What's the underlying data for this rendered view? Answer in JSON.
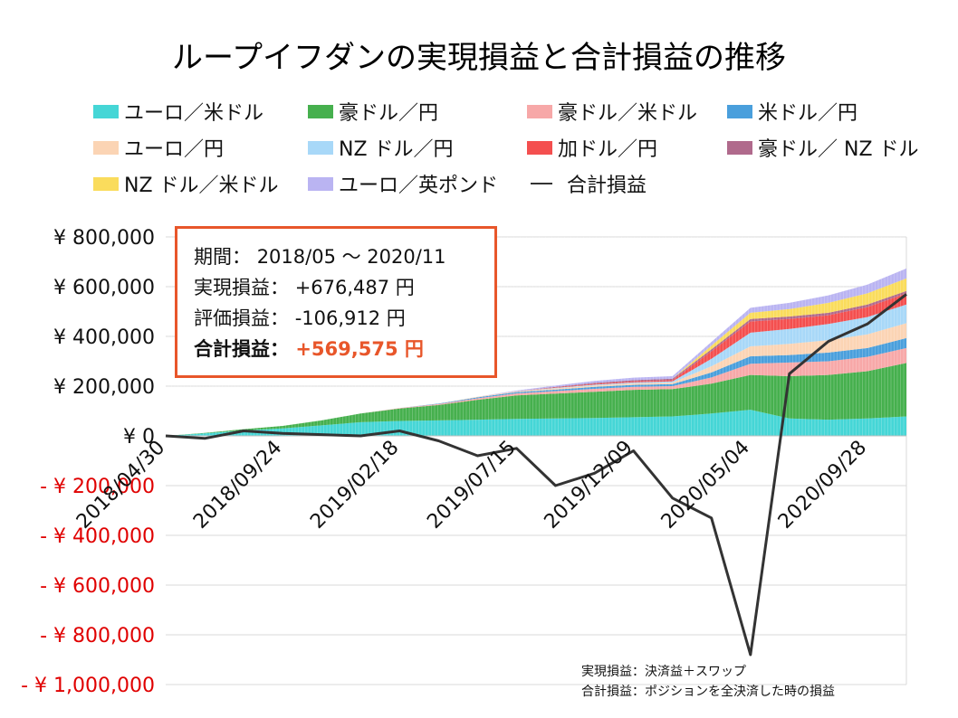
{
  "title": "ループイフダンの実現損益と合計損益の推移",
  "legend": [
    {
      "label": "ユーロ／米ドル",
      "color": "#45d6d6"
    },
    {
      "label": "豪ドル／円",
      "color": "#46b04e"
    },
    {
      "label": "豪ドル／米ドル",
      "color": "#f7a8a8"
    },
    {
      "label": "米ドル／円",
      "color": "#4a9fdc"
    },
    {
      "label": "ユーロ／円",
      "color": "#fbd4b4"
    },
    {
      "label": "NZ ドル／円",
      "color": "#a8d8f8"
    },
    {
      "label": "加ドル／円",
      "color": "#f44f4f"
    },
    {
      "label": "豪ドル／ NZ ドル",
      "color": "#b06a8c"
    },
    {
      "label": "NZ ドル／米ドル",
      "color": "#fadc5c"
    },
    {
      "label": "ユーロ／英ポンド",
      "color": "#bab4f2"
    },
    {
      "label": "合計損益",
      "color": "#333333",
      "kind": "line"
    }
  ],
  "info": {
    "period_label": "期間：",
    "period_value": "2018/05 ～ 2020/11",
    "realized_label": "実現損益：",
    "realized_value": "+676,487 円",
    "unrealized_label": "評価損益：",
    "unrealized_value": "-106,912 円",
    "total_label": "合計損益：",
    "total_value": "+569,575 円"
  },
  "notes": [
    "実現損益：決済益＋スワップ",
    "合計損益：ポジションを全決済した時の損益"
  ],
  "chart_data": {
    "type": "area",
    "stacked": true,
    "ylim": [
      -1000000,
      800000
    ],
    "yticks": [
      {
        "value": 800000,
        "label": "¥ 800,000"
      },
      {
        "value": 600000,
        "label": "¥ 600,000"
      },
      {
        "value": 400000,
        "label": "¥ 400,000"
      },
      {
        "value": 200000,
        "label": "¥ 200,000"
      },
      {
        "value": 0,
        "label": "¥ 0"
      },
      {
        "value": -200000,
        "label": "- ¥ 200,000"
      },
      {
        "value": -400000,
        "label": "- ¥ 400,000"
      },
      {
        "value": -600000,
        "label": "- ¥ 600,000"
      },
      {
        "value": -800000,
        "label": "- ¥ 800,000"
      },
      {
        "value": -1000000,
        "label": "- ¥ 1,000,000"
      }
    ],
    "negative_tick_color": "#e00000",
    "grid": "horizontal",
    "legend_position": "top",
    "x": [
      "2018/04/30",
      "2018/06/24",
      "2018/08/19",
      "2018/09/24",
      "2018/11/18",
      "2019/01/13",
      "2019/02/18",
      "2019/04/14",
      "2019/06/09",
      "2019/07/15",
      "2019/09/08",
      "2019/11/03",
      "2019/12/09",
      "2020/02/02",
      "2020/03/29",
      "2020/05/04",
      "2020/06/28",
      "2020/08/23",
      "2020/09/28",
      "2020/11/23"
    ],
    "xticks_labeled": [
      "2018/04/30",
      "2018/09/24",
      "2019/02/18",
      "2019/07/15",
      "2019/12/09",
      "2020/05/04",
      "2020/09/28"
    ],
    "series": [
      {
        "name": "ユーロ／米ドル",
        "color": "#45d6d6",
        "values": [
          0,
          10000,
          22000,
          30000,
          42000,
          55000,
          60000,
          62000,
          65000,
          68000,
          70000,
          72000,
          75000,
          78000,
          90000,
          105000,
          70000,
          65000,
          70000,
          78000
        ]
      },
      {
        "name": "豪ドル／円",
        "color": "#46b04e",
        "values": [
          0,
          2000,
          5000,
          10000,
          20000,
          35000,
          50000,
          62000,
          80000,
          95000,
          100000,
          105000,
          110000,
          110000,
          120000,
          140000,
          170000,
          180000,
          190000,
          215000
        ]
      },
      {
        "name": "豪ドル／米ドル",
        "color": "#f7a8a8",
        "values": [
          0,
          0,
          0,
          0,
          0,
          0,
          2000,
          4000,
          6000,
          8000,
          10000,
          12000,
          12000,
          12000,
          25000,
          45000,
          55000,
          55000,
          58000,
          60000
        ]
      },
      {
        "name": "米ドル／円",
        "color": "#4a9fdc",
        "values": [
          0,
          0,
          0,
          0,
          0,
          0,
          0,
          2000,
          4000,
          5000,
          6000,
          8000,
          8000,
          8000,
          20000,
          30000,
          30000,
          35000,
          35000,
          40000
        ]
      },
      {
        "name": "ユーロ／円",
        "color": "#fbd4b4",
        "values": [
          0,
          0,
          0,
          0,
          0,
          0,
          0,
          0,
          2000,
          3000,
          5000,
          6000,
          6000,
          6000,
          25000,
          40000,
          45000,
          50000,
          55000,
          60000
        ]
      },
      {
        "name": "NZ ドル／円",
        "color": "#a8d8f8",
        "values": [
          0,
          0,
          0,
          0,
          0,
          0,
          0,
          0,
          0,
          0,
          2000,
          3000,
          4000,
          5000,
          30000,
          55000,
          60000,
          65000,
          70000,
          75000
        ]
      },
      {
        "name": "加ドル／円",
        "color": "#f44f4f",
        "values": [
          0,
          0,
          0,
          0,
          0,
          0,
          0,
          0,
          0,
          0,
          2000,
          3000,
          4000,
          5000,
          30000,
          45000,
          40000,
          35000,
          40000,
          45000
        ]
      },
      {
        "name": "豪ドル／ NZ ドル",
        "color": "#b06a8c",
        "values": [
          0,
          0,
          0,
          0,
          0,
          0,
          0,
          0,
          0,
          0,
          2000,
          4000,
          5000,
          6000,
          8000,
          10000,
          10000,
          10000,
          10000,
          10000
        ]
      },
      {
        "name": "NZ ドル／米ドル",
        "color": "#fadc5c",
        "values": [
          0,
          0,
          0,
          0,
          0,
          0,
          0,
          0,
          0,
          0,
          0,
          0,
          0,
          0,
          15000,
          25000,
          30000,
          40000,
          45000,
          50000
        ]
      },
      {
        "name": "ユーロ／英ポンド",
        "color": "#bab4f2",
        "values": [
          0,
          0,
          0,
          0,
          0,
          0,
          0,
          0,
          0,
          3000,
          5000,
          8000,
          10000,
          10000,
          15000,
          20000,
          25000,
          30000,
          35000,
          40000
        ]
      }
    ],
    "line": {
      "name": "合計損益",
      "color": "#333333",
      "values": [
        0,
        -10000,
        20000,
        10000,
        5000,
        0,
        20000,
        -20000,
        -80000,
        -50000,
        -200000,
        -150000,
        -60000,
        -250000,
        -330000,
        -880000,
        250000,
        380000,
        450000,
        569575
      ]
    }
  }
}
